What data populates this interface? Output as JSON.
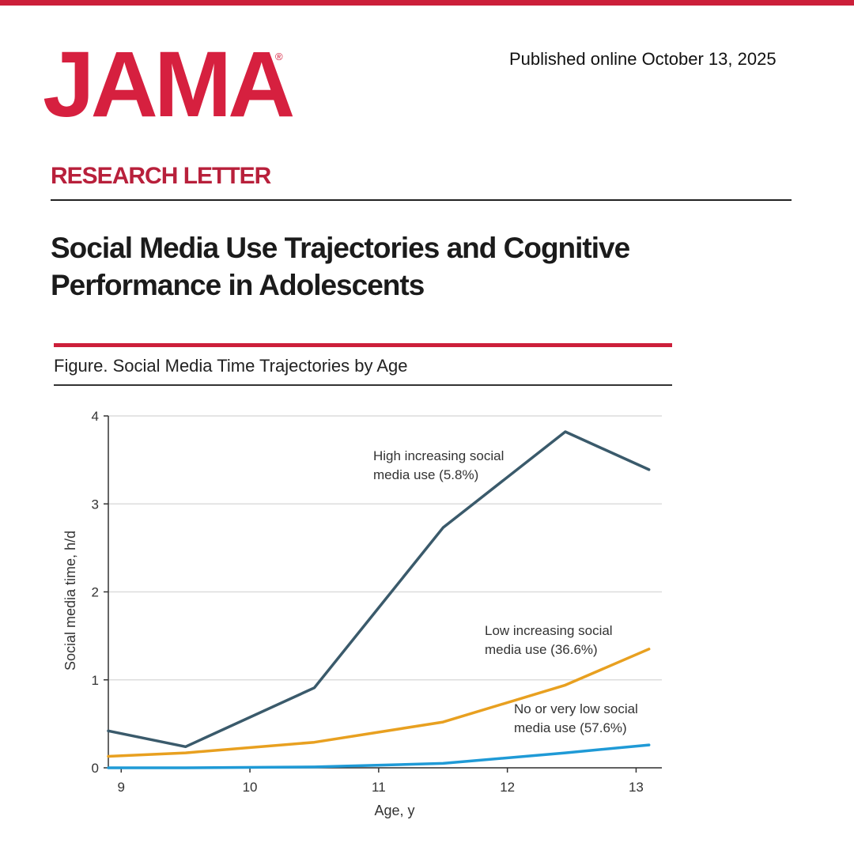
{
  "header": {
    "logo_text": "JAMA",
    "logo_mark": "®",
    "published": "Published online October 13, 2025",
    "brand_color": "#d6203f"
  },
  "article": {
    "section": "RESEARCH LETTER",
    "title": "Social Media Use Trajectories and Cognitive Performance in Adolescents"
  },
  "figure": {
    "caption": "Figure. Social Media Time Trajectories by Age"
  },
  "chart_data": {
    "type": "line",
    "xlabel": "Age, y",
    "ylabel": "Social media time, h/d",
    "xlim": [
      8.9,
      13.2
    ],
    "ylim": [
      0,
      4
    ],
    "xticks": [
      9,
      10,
      11,
      12,
      13
    ],
    "yticks": [
      0,
      1,
      2,
      3,
      4
    ],
    "grid": "horizontal",
    "series": [
      {
        "label_lines": [
          "High increasing social",
          "media use (5.8%)"
        ],
        "color": "#3a5a6b",
        "x": [
          8.9,
          9.5,
          10.5,
          11.5,
          12.45,
          13.1
        ],
        "y": [
          0.42,
          0.24,
          0.91,
          2.73,
          3.82,
          3.39
        ]
      },
      {
        "label_lines": [
          "Low increasing social",
          "media use (36.6%)"
        ],
        "color": "#e8a020",
        "x": [
          8.9,
          9.5,
          10.5,
          11.5,
          12.45,
          13.1
        ],
        "y": [
          0.13,
          0.17,
          0.29,
          0.52,
          0.94,
          1.35
        ]
      },
      {
        "label_lines": [
          "No or very low social",
          "media use (57.6%)"
        ],
        "color": "#1f9ad6",
        "x": [
          8.9,
          9.5,
          10.5,
          11.5,
          12.45,
          13.1
        ],
        "y": [
          0.0,
          0.0,
          0.01,
          0.05,
          0.17,
          0.26
        ]
      }
    ]
  }
}
